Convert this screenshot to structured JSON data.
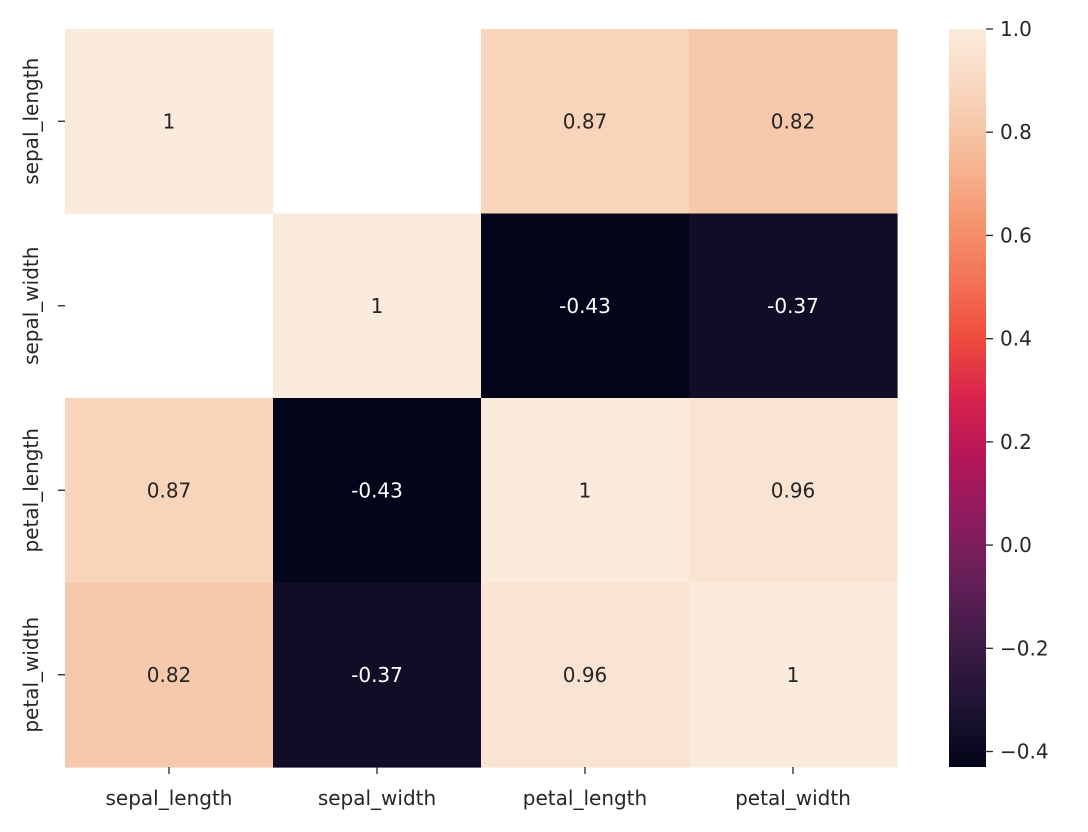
{
  "chart_data": {
    "type": "heatmap",
    "title": "",
    "xlabel": "",
    "ylabel": "",
    "x_categories": [
      "sepal_length",
      "sepal_width",
      "petal_length",
      "petal_width"
    ],
    "y_categories": [
      "sepal_length",
      "sepal_width",
      "petal_length",
      "petal_width"
    ],
    "values": [
      [
        1,
        null,
        0.87,
        0.82
      ],
      [
        null,
        1,
        -0.43,
        -0.37
      ],
      [
        0.87,
        -0.43,
        1,
        0.96
      ],
      [
        0.82,
        -0.37,
        0.96,
        1
      ]
    ],
    "annotations": [
      [
        "1",
        "",
        "0.87",
        "0.82"
      ],
      [
        "",
        "1",
        "-0.43",
        "-0.37"
      ],
      [
        "0.87",
        "-0.43",
        "1",
        "0.96"
      ],
      [
        "0.82",
        "-0.37",
        "0.96",
        "1"
      ]
    ],
    "colormap": "rocket",
    "colorbar": {
      "vmin": -0.43,
      "vmax": 1.0,
      "ticks": [
        1.0,
        0.8,
        0.6,
        0.4,
        0.2,
        0.0,
        -0.2,
        -0.4
      ],
      "tick_labels": [
        "1.0",
        "0.8",
        "0.6",
        "0.4",
        "0.2",
        "0.0",
        "−0.2",
        "−0.4"
      ],
      "placement": "right"
    },
    "colormap_stops": [
      "#03051a",
      "#1e1433",
      "#3d1b47",
      "#631f57",
      "#8c1c5f",
      "#b41658",
      "#d8234d",
      "#ef4d3c",
      "#f4765a",
      "#f59a74",
      "#f6bc9a",
      "#f8d6be",
      "#faebdd"
    ]
  }
}
